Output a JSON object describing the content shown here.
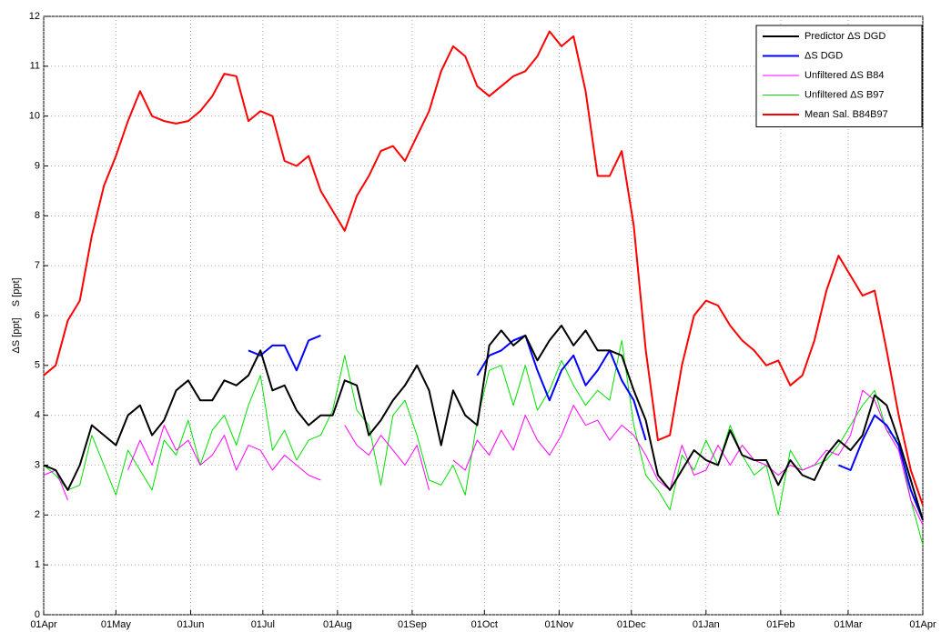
{
  "chart_data": {
    "type": "line",
    "ylabel": "ΔS [ppt]    S [ppt]",
    "x": [
      0,
      5,
      10,
      15,
      20,
      25,
      30,
      35,
      40,
      45,
      50,
      55,
      60,
      65,
      70,
      75,
      80,
      85,
      90,
      95,
      100,
      105,
      110,
      115,
      120,
      125,
      130,
      135,
      140,
      145,
      150,
      155,
      160,
      165,
      170,
      175,
      180,
      185,
      190,
      195,
      200,
      205,
      210,
      215,
      220,
      225,
      230,
      235,
      240,
      245,
      250,
      255,
      260,
      265,
      270,
      275,
      280,
      285,
      290,
      295,
      300,
      305,
      310,
      315,
      320,
      325,
      330,
      335,
      340,
      345,
      350,
      355,
      360,
      365
    ],
    "xlim": [
      0,
      365
    ],
    "xticks": [
      {
        "value": 0,
        "label": "01Apr"
      },
      {
        "value": 30,
        "label": "01May"
      },
      {
        "value": 61,
        "label": "01Jun"
      },
      {
        "value": 91,
        "label": "01Jul"
      },
      {
        "value": 122,
        "label": "01Aug"
      },
      {
        "value": 153,
        "label": "01Sep"
      },
      {
        "value": 183,
        "label": "01Oct"
      },
      {
        "value": 214,
        "label": "01Nov"
      },
      {
        "value": 244,
        "label": "01Dec"
      },
      {
        "value": 275,
        "label": "01Jan"
      },
      {
        "value": 306,
        "label": "01Feb"
      },
      {
        "value": 334,
        "label": "01Mar"
      },
      {
        "value": 365,
        "label": "01Apr"
      }
    ],
    "ylim": [
      0,
      12
    ],
    "yticks": [
      0,
      1,
      2,
      3,
      4,
      5,
      6,
      7,
      8,
      9,
      10,
      11,
      12
    ],
    "grid": true,
    "legend": "upper right",
    "series": [
      {
        "name": "Predictor ΔS DGD",
        "color": "#000000",
        "linewidth": 2,
        "values": [
          3.0,
          2.9,
          2.5,
          3.0,
          3.8,
          3.6,
          3.4,
          4.0,
          4.2,
          3.6,
          3.9,
          4.5,
          4.7,
          4.3,
          4.3,
          4.7,
          4.6,
          4.8,
          5.3,
          4.5,
          4.6,
          4.1,
          3.8,
          4.0,
          4.0,
          4.7,
          4.6,
          3.6,
          3.9,
          4.3,
          4.6,
          5.0,
          4.5,
          3.4,
          4.5,
          4.0,
          3.8,
          5.4,
          5.7,
          5.4,
          5.6,
          5.1,
          5.5,
          5.8,
          5.4,
          5.7,
          5.3,
          5.3,
          5.2,
          4.5,
          3.9,
          2.8,
          2.5,
          2.9,
          3.3,
          3.1,
          3.0,
          3.7,
          3.2,
          3.1,
          3.1,
          2.6,
          3.1,
          2.8,
          2.7,
          3.2,
          3.5,
          3.3,
          3.6,
          4.4,
          4.2,
          3.5,
          2.7,
          1.9
        ]
      },
      {
        "name": "ΔS DGD",
        "color": "#0000ff",
        "linewidth": 2,
        "values": [
          null,
          null,
          null,
          null,
          null,
          null,
          null,
          null,
          null,
          null,
          null,
          null,
          null,
          null,
          null,
          null,
          null,
          5.3,
          5.2,
          5.4,
          5.4,
          4.9,
          5.5,
          5.6,
          null,
          null,
          null,
          null,
          null,
          null,
          null,
          null,
          null,
          null,
          null,
          null,
          4.8,
          5.2,
          5.3,
          5.5,
          5.6,
          4.9,
          4.3,
          4.9,
          5.2,
          4.6,
          4.9,
          5.3,
          4.7,
          4.3,
          3.5,
          null,
          null,
          null,
          null,
          null,
          null,
          null,
          null,
          null,
          null,
          null,
          null,
          null,
          null,
          null,
          3.0,
          2.9,
          3.5,
          4.0,
          3.8,
          3.4,
          2.5,
          1.9
        ]
      },
      {
        "name": "Unfiltered ΔS B84",
        "color": "#ff00ff",
        "linewidth": 1,
        "values": [
          2.8,
          2.9,
          2.3,
          null,
          null,
          null,
          null,
          2.9,
          3.5,
          3.0,
          3.8,
          3.3,
          3.5,
          3.0,
          3.2,
          3.6,
          2.9,
          3.4,
          3.3,
          2.9,
          3.2,
          3.0,
          2.8,
          2.7,
          null,
          3.8,
          3.4,
          3.2,
          3.6,
          3.3,
          3.0,
          3.4,
          2.5,
          null,
          3.1,
          2.9,
          3.5,
          3.2,
          3.7,
          3.3,
          4.0,
          3.5,
          3.2,
          3.6,
          4.2,
          3.8,
          3.9,
          3.5,
          3.8,
          3.6,
          3.2,
          2.7,
          2.5,
          3.4,
          2.8,
          2.9,
          3.4,
          3.0,
          3.4,
          3.1,
          3.0,
          2.8,
          3.0,
          2.9,
          3.0,
          3.3,
          3.2,
          3.6,
          4.5,
          4.3,
          3.7,
          3.3,
          2.3,
          1.8
        ]
      },
      {
        "name": "Unfiltered ΔS B97",
        "color": "#00e000",
        "linewidth": 1,
        "values": [
          3.0,
          2.8,
          2.5,
          2.6,
          3.6,
          3.0,
          2.4,
          3.3,
          2.9,
          2.5,
          3.5,
          3.2,
          3.9,
          3.0,
          3.7,
          4.0,
          3.4,
          4.2,
          4.8,
          3.3,
          3.7,
          3.1,
          3.5,
          3.6,
          4.1,
          5.2,
          4.1,
          3.8,
          2.6,
          4.0,
          4.3,
          3.6,
          2.7,
          2.6,
          3.0,
          2.4,
          3.9,
          4.9,
          5.0,
          4.2,
          5.0,
          4.1,
          4.5,
          5.1,
          4.6,
          4.2,
          4.5,
          4.3,
          5.5,
          3.8,
          2.8,
          2.5,
          2.1,
          3.2,
          2.9,
          3.5,
          3.0,
          3.8,
          3.2,
          2.8,
          3.0,
          2.0,
          3.3,
          2.9,
          3.0,
          3.1,
          3.4,
          3.8,
          4.2,
          4.5,
          3.7,
          3.5,
          2.3,
          1.4
        ]
      },
      {
        "name": "Mean Sal. B84B97",
        "color": "#ff0000",
        "linewidth": 2,
        "values": [
          4.8,
          5.0,
          5.9,
          6.3,
          7.6,
          8.6,
          9.2,
          9.9,
          10.5,
          10.0,
          9.9,
          9.85,
          9.9,
          10.1,
          10.4,
          10.85,
          10.8,
          9.9,
          10.1,
          10.0,
          9.1,
          9.0,
          9.2,
          8.5,
          8.1,
          7.7,
          8.4,
          8.8,
          9.3,
          9.4,
          9.1,
          9.6,
          10.1,
          10.9,
          11.4,
          11.2,
          10.6,
          10.4,
          10.6,
          10.8,
          10.9,
          11.2,
          11.7,
          11.4,
          11.6,
          10.5,
          8.8,
          8.8,
          9.3,
          7.8,
          5.3,
          3.5,
          3.6,
          5.0,
          6.0,
          6.3,
          6.2,
          5.8,
          5.5,
          5.3,
          5.0,
          5.1,
          4.6,
          4.8,
          5.5,
          6.5,
          7.2,
          6.8,
          6.4,
          6.5,
          5.3,
          4.0,
          2.9,
          2.2
        ]
      }
    ]
  }
}
